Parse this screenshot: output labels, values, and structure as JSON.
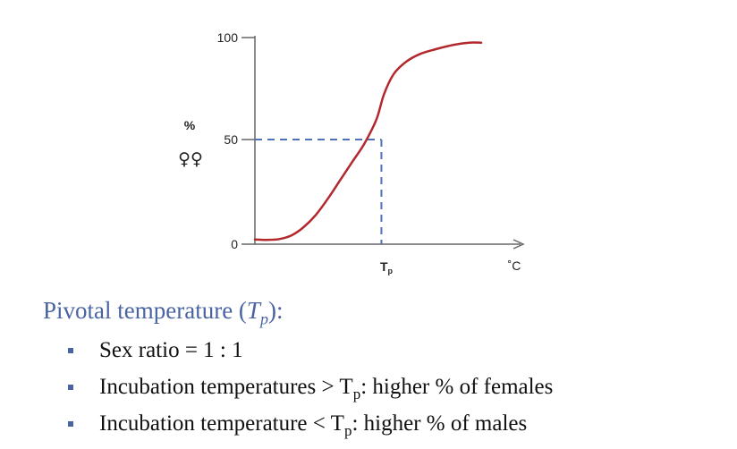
{
  "chart_data": {
    "type": "line",
    "ylabel": "%",
    "ylabel_symbol": "♀♀",
    "xlabel_unit": "˚C",
    "yticks": [
      {
        "value": 0,
        "label": "0"
      },
      {
        "value": 50,
        "label": "50"
      },
      {
        "value": 100,
        "label": "100"
      }
    ],
    "xmarker": {
      "label": "T",
      "subscript": "p",
      "value": 0.52
    },
    "xlim": [
      0,
      1
    ],
    "ylim": [
      0,
      100
    ],
    "series": [
      {
        "color": "#b3282d",
        "points": [
          [
            0.0,
            1
          ],
          [
            0.05,
            0.8
          ],
          [
            0.1,
            1.2
          ],
          [
            0.15,
            3
          ],
          [
            0.2,
            7
          ],
          [
            0.25,
            13
          ],
          [
            0.3,
            21
          ],
          [
            0.35,
            30
          ],
          [
            0.4,
            39
          ],
          [
            0.45,
            48
          ],
          [
            0.5,
            60
          ],
          [
            0.53,
            72
          ],
          [
            0.57,
            82
          ],
          [
            0.62,
            88
          ],
          [
            0.68,
            92
          ],
          [
            0.75,
            94.5
          ],
          [
            0.82,
            96.5
          ],
          [
            0.88,
            97.5
          ],
          [
            0.93,
            97.5
          ]
        ]
      }
    ],
    "reference_line": {
      "y": 50,
      "color": "#4f72b8",
      "style": "dashed"
    }
  },
  "notes": {
    "heading_prefix": "Pivotal temperature (",
    "heading_var": "T",
    "heading_sub": "p",
    "heading_suffix": "):",
    "bullets": [
      {
        "before": "Sex ratio = 1 : 1",
        "sub": "",
        "after": ""
      },
      {
        "before": "Incubation temperatures > T",
        "sub": "p",
        "after": ":  higher % of females"
      },
      {
        "before": "Incubation temperature < T",
        "sub": "p",
        "after": ":  higher % of males"
      }
    ],
    "accent_color": "#4a63a2"
  }
}
